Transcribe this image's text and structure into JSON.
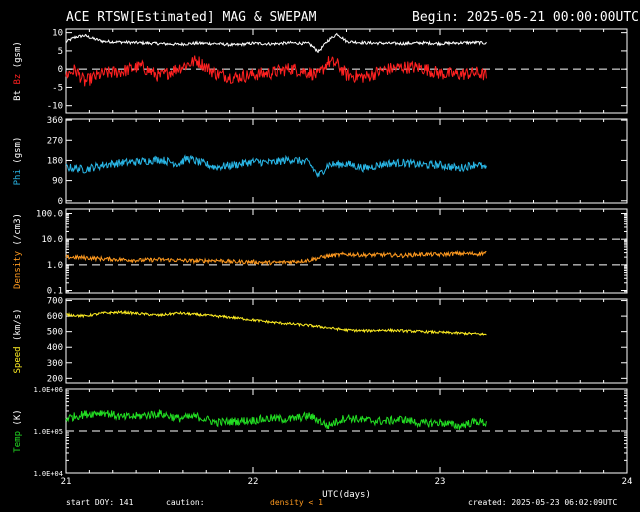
{
  "header": {
    "title": "ACE RTSW[Estimated] MAG & SWEPAM",
    "begin": "Begin: 2025-05-21 00:00:00UTC"
  },
  "footer": {
    "start_doy": "start DOY: 141",
    "caution": "caution:",
    "density_note": "density < 1",
    "created": "created: 2025-05-23 06:02:09UTC"
  },
  "colors": {
    "background": "#000000",
    "axis": "#ffffff",
    "bt": "#ffffff",
    "bz": "#ff2020",
    "phi": "#29b6e6",
    "density": "#ff9a1f",
    "speed": "#ffee22",
    "temp": "#22dd22",
    "density_note": "#ff9a1f"
  },
  "chart_data": {
    "type": "line",
    "xlabel": "UTC(days)",
    "xlim": [
      21,
      24
    ],
    "x_ticks": [
      "21",
      "22",
      "23",
      "24"
    ],
    "panels": [
      {
        "id": "mag",
        "ylabel_parts": [
          {
            "text": "Bt",
            "color": "#ffffff"
          },
          {
            "text": "Bz",
            "color": "#ff2020"
          },
          {
            "text": "(gsm)",
            "color": "#ffffff"
          }
        ],
        "ylim": [
          -12,
          11
        ],
        "scale": "linear",
        "yticks": [
          {
            "v": 10,
            "label": "10"
          },
          {
            "v": 5,
            "label": "5"
          },
          {
            "v": 0,
            "label": "0"
          },
          {
            "v": -5,
            "label": "-5"
          },
          {
            "v": -10,
            "label": "-10"
          }
        ],
        "dashed": [
          0
        ],
        "series": [
          {
            "name": "Bt",
            "color": "#ffffff",
            "noise": 0.4,
            "x": [
              21.0,
              21.05,
              21.1,
              21.15,
              21.2,
              21.3,
              21.4,
              21.5,
              21.6,
              21.7,
              21.8,
              21.9,
              22.0,
              22.1,
              22.2,
              22.3,
              22.35,
              22.4,
              22.45,
              22.5,
              22.6,
              22.7,
              22.8,
              22.9,
              23.0,
              23.1,
              23.2,
              23.25
            ],
            "y": [
              7.5,
              8.8,
              9.2,
              8.3,
              7.6,
              7.4,
              7.2,
              7.0,
              6.8,
              7.1,
              7.0,
              6.6,
              7.1,
              6.9,
              7.2,
              7.0,
              4.8,
              7.8,
              9.7,
              7.6,
              7.2,
              7.1,
              7.0,
              7.2,
              7.0,
              7.2,
              7.3,
              7.1
            ]
          },
          {
            "name": "Bz",
            "color": "#ff2020",
            "noise": 1.8,
            "x": [
              21.0,
              21.05,
              21.1,
              21.15,
              21.2,
              21.3,
              21.4,
              21.5,
              21.6,
              21.7,
              21.8,
              21.9,
              22.0,
              22.1,
              22.2,
              22.3,
              22.35,
              22.4,
              22.45,
              22.5,
              22.6,
              22.7,
              22.8,
              22.9,
              23.0,
              23.1,
              23.2,
              23.25
            ],
            "y": [
              -1.5,
              -0.2,
              -3.5,
              -2.2,
              -1.2,
              -0.6,
              0.8,
              -2.0,
              0.3,
              2.4,
              -1.2,
              -2.3,
              -1.5,
              -1.0,
              0.2,
              -0.9,
              -1.8,
              2.0,
              1.4,
              -1.6,
              -2.2,
              -0.2,
              0.6,
              0.4,
              -1.2,
              -1.4,
              -1.0,
              -1.8
            ]
          }
        ]
      },
      {
        "id": "phi",
        "ylabel_parts": [
          {
            "text": "Phi",
            "color": "#29b6e6"
          },
          {
            "text": "(gsm)",
            "color": "#ffffff"
          }
        ],
        "ylim": [
          -10,
          365
        ],
        "scale": "linear",
        "yticks": [
          {
            "v": 360,
            "label": "360"
          },
          {
            "v": 270,
            "label": "270"
          },
          {
            "v": 180,
            "label": "180"
          },
          {
            "v": 90,
            "label": "90"
          },
          {
            "v": 0,
            "label": "0"
          }
        ],
        "dashed": [],
        "series": [
          {
            "name": "Phi",
            "color": "#29b6e6",
            "noise": 18,
            "x": [
              21.0,
              21.1,
              21.2,
              21.3,
              21.4,
              21.5,
              21.6,
              21.65,
              21.7,
              21.8,
              21.9,
              22.0,
              22.1,
              22.2,
              22.3,
              22.35,
              22.4,
              22.5,
              22.6,
              22.7,
              22.8,
              22.9,
              23.0,
              23.1,
              23.2,
              23.25
            ],
            "y": [
              150,
              140,
              160,
              170,
              175,
              185,
              165,
              190,
              175,
              150,
              160,
              175,
              170,
              185,
              170,
              110,
              160,
              165,
              145,
              165,
              170,
              160,
              160,
              145,
              165,
              140
            ]
          }
        ]
      },
      {
        "id": "density",
        "ylabel_parts": [
          {
            "text": "Density",
            "color": "#ff9a1f"
          },
          {
            "text": "(/cm3)",
            "color": "#ffffff"
          }
        ],
        "ylim": [
          0.08,
          150
        ],
        "scale": "log",
        "yticks": [
          {
            "v": 100,
            "label": "100.0"
          },
          {
            "v": 10,
            "label": "10.0"
          },
          {
            "v": 1,
            "label": "1.0"
          },
          {
            "v": 0.1,
            "label": "0.1"
          }
        ],
        "dashed": [
          10,
          1
        ],
        "series": [
          {
            "name": "Density",
            "color": "#ff9a1f",
            "noise": 0.08,
            "x": [
              21.0,
              21.1,
              21.2,
              21.3,
              21.4,
              21.5,
              21.6,
              21.7,
              21.8,
              21.9,
              22.0,
              22.1,
              22.2,
              22.3,
              22.4,
              22.5,
              22.6,
              22.7,
              22.8,
              22.9,
              23.0,
              23.1,
              23.2,
              23.25
            ],
            "y": [
              2.0,
              1.9,
              1.7,
              1.6,
              1.5,
              1.6,
              1.5,
              1.4,
              1.5,
              1.3,
              1.3,
              1.2,
              1.3,
              1.5,
              2.2,
              2.6,
              2.4,
              2.5,
              2.3,
              2.6,
              2.5,
              2.8,
              2.7,
              3.0
            ]
          }
        ]
      },
      {
        "id": "speed",
        "ylabel_parts": [
          {
            "text": "Speed",
            "color": "#ffee22"
          },
          {
            "text": "(km/s)",
            "color": "#ffffff"
          }
        ],
        "ylim": [
          170,
          710
        ],
        "scale": "linear",
        "yticks": [
          {
            "v": 700,
            "label": "700"
          },
          {
            "v": 600,
            "label": "600"
          },
          {
            "v": 500,
            "label": "500"
          },
          {
            "v": 400,
            "label": "400"
          },
          {
            "v": 300,
            "label": "300"
          },
          {
            "v": 200,
            "label": "200"
          }
        ],
        "dashed": [],
        "series": [
          {
            "name": "Speed",
            "color": "#ffee22",
            "noise": 8,
            "x": [
              21.0,
              21.1,
              21.2,
              21.3,
              21.4,
              21.5,
              21.6,
              21.7,
              21.8,
              21.9,
              22.0,
              22.1,
              22.2,
              22.3,
              22.4,
              22.5,
              22.6,
              22.7,
              22.8,
              22.9,
              23.0,
              23.1,
              23.2,
              23.25
            ],
            "y": [
              610,
              600,
              620,
              625,
              615,
              605,
              620,
              610,
              600,
              590,
              575,
              560,
              550,
              540,
              525,
              510,
              505,
              510,
              505,
              500,
              495,
              490,
              485,
              480
            ]
          }
        ]
      },
      {
        "id": "temp",
        "ylabel_parts": [
          {
            "text": "Temp",
            "color": "#22dd22"
          },
          {
            "text": "(K)",
            "color": "#ffffff"
          }
        ],
        "ylim": [
          10000,
          1000000
        ],
        "scale": "log",
        "yticks": [
          {
            "v": 1000000,
            "label": "1.0E+06"
          },
          {
            "v": 100000,
            "label": "1.0E+05"
          },
          {
            "v": 10000,
            "label": "1.0E+04"
          }
        ],
        "dashed": [
          100000
        ],
        "series": [
          {
            "name": "Temp",
            "color": "#22dd22",
            "noise": 0.1,
            "x": [
              21.0,
              21.1,
              21.2,
              21.3,
              21.4,
              21.5,
              21.6,
              21.7,
              21.8,
              21.9,
              22.0,
              22.1,
              22.2,
              22.3,
              22.4,
              22.5,
              22.6,
              22.7,
              22.8,
              22.9,
              23.0,
              23.1,
              23.2,
              23.25
            ],
            "y": [
              200000,
              250000,
              280000,
              210000,
              230000,
              260000,
              200000,
              220000,
              160000,
              170000,
              180000,
              200000,
              190000,
              230000,
              130000,
              210000,
              180000,
              170000,
              190000,
              150000,
              160000,
              130000,
              170000,
              150000
            ]
          }
        ]
      }
    ]
  }
}
